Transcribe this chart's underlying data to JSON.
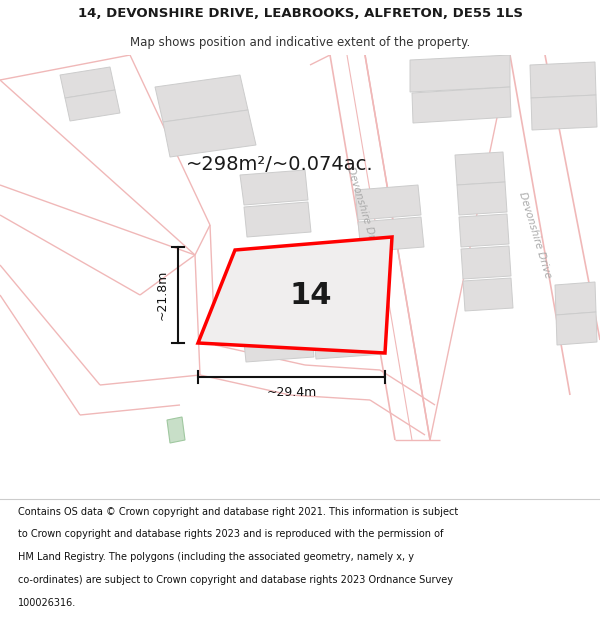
{
  "title": "14, DEVONSHIRE DRIVE, LEABROOKS, ALFRETON, DE55 1LS",
  "subtitle": "Map shows position and indicative extent of the property.",
  "area_text": "~298m²/~0.074ac.",
  "width_label": "~29.4m",
  "height_label": "~21.8m",
  "number_label": "14",
  "footer_lines": [
    "Contains OS data © Crown copyright and database right 2021. This information is subject",
    "to Crown copyright and database rights 2023 and is reproduced with the permission of",
    "HM Land Registry. The polygons (including the associated geometry, namely x, y",
    "co-ordinates) are subject to Crown copyright and database rights 2023 Ordnance Survey",
    "100026316."
  ],
  "map_bg": "#f7f5f5",
  "road_line_color": "#f0b8b8",
  "building_fill": "#e0dede",
  "building_edge": "#cccccc",
  "plot_fill": "#f0efef",
  "plot_edge": "#ff0000",
  "road_label_color": "#aaaaaa",
  "dim_color": "#111111",
  "text_color": "#1a1a1a",
  "green_fill": "#c8dfc8",
  "green_edge": "#a0c8a0",
  "title_fontsize": 9.5,
  "subtitle_fontsize": 8.5,
  "area_fontsize": 14,
  "number_fontsize": 22,
  "dim_fontsize": 9,
  "road_label_fontsize": 7.5,
  "footer_fontsize": 7.0
}
